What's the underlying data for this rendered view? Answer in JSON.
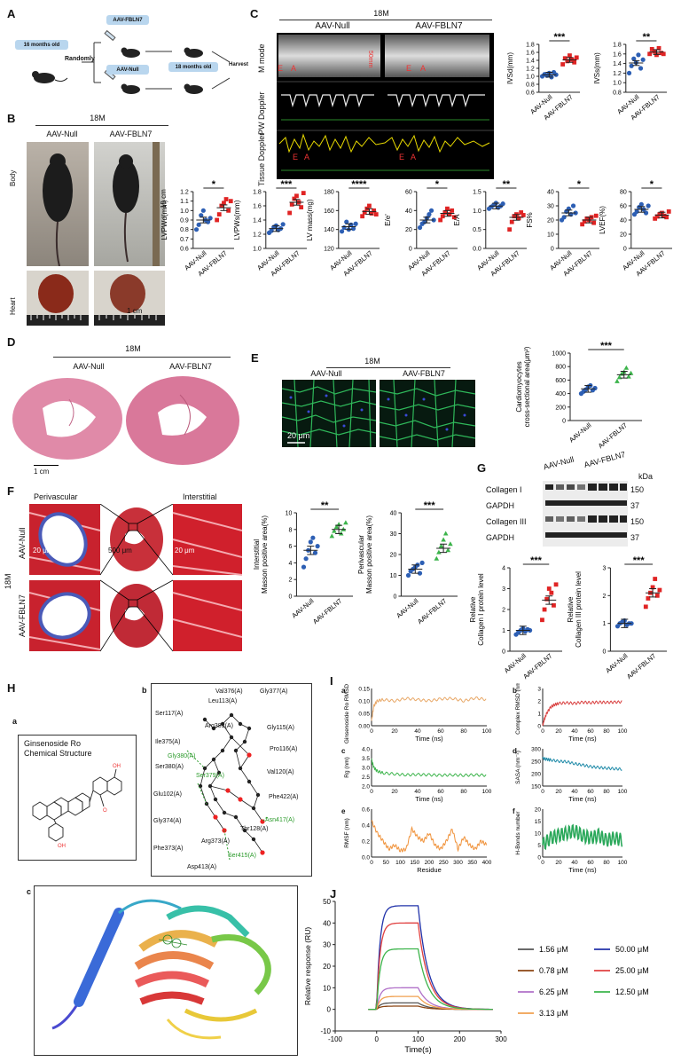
{
  "panel_a": {
    "label": "A",
    "start": "16 months old",
    "randomly": "Randomly",
    "group1": "AAV-FBLN7",
    "group2": "AAV-Null",
    "later": "18 months old",
    "harvest": "Harvest"
  },
  "panel_b": {
    "label": "B",
    "age": "18M",
    "group1": "AAV-Null",
    "group2": "AAV-FBLN7",
    "row_body": "Body",
    "row_heart": "Heart",
    "scale_body": "15 cm",
    "scale_heart": "1 cm"
  },
  "panel_c": {
    "label": "C",
    "age": "18M",
    "group1": "AAV-Null",
    "group2": "AAV-FBLN7",
    "row1": "M mode",
    "row2": "PW Doppler",
    "row3": "Tissue Doppler",
    "e_mark": "E",
    "a_mark": "A"
  },
  "panel_d": {
    "label": "D",
    "age": "18M",
    "group1": "AAV-Null",
    "group2": "AAV-FBLN7",
    "scale": "1 cm"
  },
  "panel_e": {
    "label": "E",
    "age": "18M",
    "group1": "AAV-Null",
    "group2": "AAV-FBLN7",
    "scale": "20 μm"
  },
  "panel_f": {
    "label": "F",
    "col1": "Perivascular",
    "col3": "Interstitial",
    "age": "18M",
    "row1": "AAV-Null",
    "row2": "AAV-FBLN7",
    "scale1": "20 μm",
    "scale2": "500 μm",
    "scale3": "20 μm"
  },
  "panel_g": {
    "label": "G",
    "group1": "AAV-Null",
    "group2": "AAV-FBLN7",
    "kda": "kDa",
    "bands": [
      {
        "name": "Collagen I",
        "kda": "150"
      },
      {
        "name": "GAPDH",
        "kda": "37"
      },
      {
        "name": "Collagen III",
        "kda": "150"
      },
      {
        "name": "GAPDH",
        "kda": "37"
      }
    ]
  },
  "panel_h": {
    "label": "H",
    "sub_a": "a",
    "sub_b": "b",
    "sub_c": "c",
    "chem_title": "Ginsenoside Ro\nChemical Structure",
    "residues": [
      "Val376(A)",
      "Gly377(A)",
      "Leu113(A)",
      "Ser117(A)",
      "Arg381(A)",
      "Gly115(A)",
      "Ile375(A)",
      "Pro116(A)",
      "Gly380(A)",
      "Ser380(A)",
      "Ser379(A)",
      "Val120(A)",
      "Glu102(A)",
      "Phe422(A)",
      "Gly374(A)",
      "Arg373(A)",
      "Thr128(A)",
      "Asn417(A)",
      "Phe373(A)",
      "Ser415(A)",
      "Asp413(A)"
    ]
  },
  "panel_i": {
    "label": "I",
    "subs": [
      "a",
      "b",
      "c",
      "d",
      "e",
      "f"
    ]
  },
  "panel_j": {
    "label": "J"
  },
  "chart_data": [
    {
      "id": "IVSd",
      "type": "scatter",
      "ylabel": "IVSd(mm)",
      "ylim": [
        0.6,
        1.8
      ],
      "yticks": [
        "0.6",
        "0.8",
        "1.0",
        "1.2",
        "1.4",
        "1.6",
        "1.8"
      ],
      "categories": [
        "AAV-Null",
        "AAV-FBLN7"
      ],
      "means": [
        1.04,
        1.41
      ],
      "sig": "***",
      "points": [
        [
          1.0,
          1.05,
          1.02,
          1.08,
          0.98,
          1.1,
          1.04
        ],
        [
          1.3,
          1.45,
          1.38,
          1.52,
          1.42,
          1.35,
          1.47
        ]
      ]
    },
    {
      "id": "IVSs",
      "type": "scatter",
      "ylabel": "IVSs(mm)",
      "ylim": [
        0.8,
        1.8
      ],
      "yticks": [
        "0.8",
        "1.0",
        "1.2",
        "1.4",
        "1.6",
        "1.8"
      ],
      "categories": [
        "AAV-Null",
        "AAV-FBLN7"
      ],
      "means": [
        1.41,
        1.64
      ],
      "sig": "**",
      "points": [
        [
          1.2,
          1.35,
          1.5,
          1.42,
          1.58,
          1.3,
          1.48
        ],
        [
          1.6,
          1.7,
          1.65,
          1.58,
          1.72,
          1.62,
          1.6
        ]
      ]
    },
    {
      "id": "LVPWd",
      "type": "scatter",
      "ylabel": "LVPWd(mm)",
      "ylim": [
        0.6,
        1.2
      ],
      "yticks": [
        "0.6",
        "0.7",
        "0.8",
        "0.9",
        "1.0",
        "1.1",
        "1.2"
      ],
      "categories": [
        "AAV-Null",
        "AAV-FBLN7"
      ],
      "means": [
        0.9,
        1.03
      ],
      "sig": "*",
      "points": [
        [
          0.8,
          0.85,
          0.95,
          1.0,
          0.9,
          0.88,
          0.92
        ],
        [
          0.9,
          0.96,
          1.05,
          1.08,
          1.12,
          1.0,
          1.1
        ]
      ]
    },
    {
      "id": "LVPWs",
      "type": "scatter",
      "ylabel": "LVPWs(mm)",
      "ylim": [
        1.0,
        1.8
      ],
      "yticks": [
        "1.0",
        "1.2",
        "1.4",
        "1.6",
        "1.8"
      ],
      "categories": [
        "AAV-Null",
        "AAV-FBLN7"
      ],
      "means": [
        1.28,
        1.65
      ],
      "sig": "***",
      "points": [
        [
          1.22,
          1.25,
          1.3,
          1.32,
          1.26,
          1.28,
          1.34
        ],
        [
          1.5,
          1.62,
          1.7,
          1.74,
          1.65,
          1.58,
          1.78
        ]
      ]
    },
    {
      "id": "LVmass",
      "type": "scatter",
      "ylabel": "LV mass(mg)",
      "ylim": [
        120,
        180
      ],
      "yticks": [
        "120",
        "140",
        "160",
        "180"
      ],
      "categories": [
        "AAV-Null",
        "AAV-FBLN7"
      ],
      "means": [
        143,
        159
      ],
      "sig": "****",
      "points": [
        [
          138,
          142,
          148,
          140,
          145,
          141,
          146
        ],
        [
          154,
          158,
          162,
          165,
          157,
          160,
          156
        ]
      ]
    },
    {
      "id": "Ee",
      "type": "scatter",
      "ylabel": "E/e'",
      "ylim": [
        0,
        60
      ],
      "yticks": [
        "0",
        "20",
        "40",
        "60"
      ],
      "categories": [
        "AAV-Null",
        "AAV-FBLN7"
      ],
      "means": [
        30,
        37
      ],
      "sig": "*",
      "points": [
        [
          22,
          26,
          28,
          32,
          36,
          40,
          30
        ],
        [
          30,
          34,
          38,
          42,
          36,
          40,
          33
        ]
      ]
    },
    {
      "id": "EA",
      "type": "scatter",
      "ylabel": "E/A",
      "ylim": [
        0.0,
        1.5
      ],
      "yticks": [
        "0.0",
        "0.5",
        "1.0",
        "1.5"
      ],
      "categories": [
        "AAV-Null",
        "AAV-FBLN7"
      ],
      "means": [
        1.12,
        0.82
      ],
      "sig": "**",
      "points": [
        [
          1.05,
          1.1,
          1.15,
          1.2,
          1.08,
          1.12,
          1.18
        ],
        [
          0.5,
          0.7,
          0.85,
          0.9,
          0.8,
          0.95,
          0.88
        ]
      ]
    },
    {
      "id": "FS",
      "type": "scatter",
      "ylabel": "FS%",
      "ylim": [
        0,
        40
      ],
      "yticks": [
        "0",
        "10",
        "20",
        "30",
        "40"
      ],
      "categories": [
        "AAV-Null",
        "AAV-FBLN7"
      ],
      "means": [
        25,
        20
      ],
      "sig": "*",
      "points": [
        [
          20,
          22,
          26,
          28,
          24,
          30,
          25
        ],
        [
          17,
          19,
          21,
          20,
          22,
          18,
          23
        ]
      ]
    },
    {
      "id": "LVEF",
      "type": "scatter",
      "ylabel": "LVEF(%)",
      "ylim": [
        0,
        80
      ],
      "yticks": [
        "0",
        "20",
        "40",
        "60",
        "80"
      ],
      "categories": [
        "AAV-Null",
        "AAV-FBLN7"
      ],
      "means": [
        55,
        47
      ],
      "sig": "*",
      "points": [
        [
          48,
          52,
          58,
          62,
          55,
          50,
          60
        ],
        [
          42,
          45,
          48,
          50,
          46,
          44,
          52
        ]
      ]
    },
    {
      "id": "CSA",
      "type": "scatter",
      "ylabel": "Cardiomyocytes\ncross-sectional area(μm²)",
      "ylim": [
        0,
        1000
      ],
      "yticks": [
        "0",
        "200",
        "400",
        "600",
        "800",
        "1000"
      ],
      "categories": [
        "AAV-Null",
        "AAV-FBLN7"
      ],
      "means": [
        470,
        680
      ],
      "sig": "***",
      "points": [
        [
          400,
          430,
          460,
          500,
          520,
          450,
          480
        ],
        [
          580,
          640,
          690,
          720,
          780,
          650,
          700
        ]
      ]
    },
    {
      "id": "Interstitial",
      "type": "scatter",
      "ylabel": "Interstitial\nMasson positive area(%)",
      "ylim": [
        0,
        10
      ],
      "yticks": [
        "0",
        "2",
        "4",
        "6",
        "8",
        "10"
      ],
      "categories": [
        "AAV-Null",
        "AAV-FBLN7"
      ],
      "means": [
        5.5,
        8
      ],
      "sig": "**",
      "points": [
        [
          3.5,
          4.5,
          5.5,
          6.5,
          7.0,
          5.2,
          6.0
        ],
        [
          7.2,
          7.8,
          8.3,
          8.6,
          7.5,
          8.0,
          8.8
        ]
      ]
    },
    {
      "id": "Perivascular",
      "type": "scatter",
      "ylabel": "Perivascular\nMasson positive area(%)",
      "ylim": [
        0,
        40
      ],
      "yticks": [
        "0",
        "10",
        "20",
        "30",
        "40"
      ],
      "categories": [
        "AAV-Null",
        "AAV-FBLN7"
      ],
      "means": [
        13,
        23
      ],
      "sig": "***",
      "points": [
        [
          10,
          12,
          13,
          14,
          15,
          11,
          16
        ],
        [
          18,
          21,
          24,
          27,
          30,
          22,
          25
        ]
      ]
    },
    {
      "id": "Col1",
      "type": "scatter",
      "ylabel": "Relative\nCollagen I protein level",
      "ylim": [
        0,
        4
      ],
      "yticks": [
        "0",
        "1",
        "2",
        "3",
        "4"
      ],
      "categories": [
        "AAV-Null",
        "AAV-FBLN7"
      ],
      "means": [
        1.0,
        2.45
      ],
      "sig": "***",
      "points": [
        [
          0.8,
          0.9,
          1.0,
          1.1,
          0.95,
          1.05,
          1.0
        ],
        [
          1.5,
          2.0,
          2.5,
          3.0,
          2.8,
          2.2,
          3.2
        ]
      ]
    },
    {
      "id": "Col3",
      "type": "scatter",
      "ylabel": "Relative\nCollagen III protein level",
      "ylim": [
        0,
        3
      ],
      "yticks": [
        "0",
        "1",
        "2",
        "3"
      ],
      "categories": [
        "AAV-Null",
        "AAV-FBLN7"
      ],
      "means": [
        1.0,
        2.1
      ],
      "sig": "***",
      "points": [
        [
          0.9,
          1.0,
          1.05,
          1.1,
          0.95,
          1.0,
          1.0
        ],
        [
          1.6,
          1.9,
          2.1,
          2.3,
          2.6,
          2.0,
          2.2
        ]
      ]
    },
    {
      "id": "Ia",
      "type": "line",
      "ylabel": "Ginsenoside Ro RMSD (nm)",
      "xlabel": "Time (ns)",
      "xlim": [
        0,
        100
      ],
      "ylim": [
        0.0,
        0.15
      ],
      "yticks": [
        "0.00",
        "0.05",
        "0.10",
        "0.15"
      ],
      "xticks": [
        "0",
        "20",
        "40",
        "60",
        "80",
        "100"
      ],
      "color": "#e8a868",
      "x": [
        0,
        2,
        5,
        10,
        20,
        30,
        40,
        50,
        60,
        70,
        80,
        90,
        100
      ],
      "y": [
        0.02,
        0.08,
        0.1,
        0.105,
        0.1,
        0.11,
        0.105,
        0.1,
        0.108,
        0.11,
        0.1,
        0.112,
        0.105
      ]
    },
    {
      "id": "Ib",
      "type": "line",
      "ylabel": "Complex RMSD (nm)",
      "xlabel": "Time (ns)",
      "xlim": [
        0,
        100
      ],
      "ylim": [
        0,
        3
      ],
      "yticks": [
        "0",
        "1",
        "2",
        "3"
      ],
      "xticks": [
        "0",
        "20",
        "40",
        "60",
        "80",
        "100"
      ],
      "color": "#d94040",
      "x": [
        0,
        2,
        5,
        10,
        15,
        20,
        30,
        40,
        50,
        60,
        70,
        80,
        90,
        100
      ],
      "y": [
        0.0,
        0.5,
        1.0,
        1.5,
        1.7,
        1.8,
        1.85,
        1.8,
        1.9,
        1.85,
        1.9,
        1.88,
        1.9,
        1.92
      ]
    },
    {
      "id": "Ic",
      "type": "line",
      "ylabel": "Rg (nm)",
      "xlabel": "Time (ns)",
      "xlim": [
        0,
        100
      ],
      "ylim": [
        2.0,
        4.0
      ],
      "yticks": [
        "2.0",
        "2.5",
        "3.0",
        "3.5",
        "4.0"
      ],
      "xticks": [
        "0",
        "20",
        "40",
        "60",
        "80",
        "100"
      ],
      "color": "#3cb44b",
      "x": [
        0,
        2,
        5,
        10,
        20,
        30,
        40,
        50,
        60,
        70,
        80,
        90,
        100
      ],
      "y": [
        3.4,
        3.0,
        2.8,
        2.7,
        2.65,
        2.6,
        2.62,
        2.6,
        2.58,
        2.6,
        2.58,
        2.6,
        2.58
      ]
    },
    {
      "id": "Id",
      "type": "line",
      "ylabel": "SASA (nm⁻²)",
      "xlabel": "Time (ns)",
      "xlim": [
        0,
        100
      ],
      "ylim": [
        150,
        300
      ],
      "yticks": [
        "150",
        "200",
        "250",
        "300"
      ],
      "xticks": [
        "0",
        "20",
        "40",
        "60",
        "80",
        "100"
      ],
      "color": "#1f8aa8",
      "x": [
        0,
        5,
        10,
        20,
        30,
        40,
        50,
        60,
        70,
        80,
        90,
        100
      ],
      "y": [
        262,
        258,
        255,
        250,
        248,
        240,
        235,
        228,
        225,
        222,
        220,
        218
      ]
    },
    {
      "id": "Ie",
      "type": "line",
      "ylabel": "RMSF (nm)",
      "xlabel": "Residue",
      "xlim": [
        0,
        400
      ],
      "ylim": [
        0.0,
        0.6
      ],
      "yticks": [
        "0.0",
        "0.2",
        "0.4",
        "0.6"
      ],
      "xticks": [
        "0",
        "50",
        "100",
        "150",
        "200",
        "250",
        "300",
        "350",
        "400"
      ],
      "color": "#f0923a",
      "x": [
        0,
        20,
        40,
        60,
        80,
        100,
        120,
        140,
        160,
        180,
        200,
        220,
        240,
        260,
        280,
        300,
        320,
        340,
        360,
        380,
        400
      ],
      "y": [
        0.45,
        0.3,
        0.2,
        0.1,
        0.15,
        0.08,
        0.1,
        0.35,
        0.25,
        0.2,
        0.3,
        0.15,
        0.1,
        0.2,
        0.35,
        0.1,
        0.25,
        0.15,
        0.1,
        0.2,
        0.15
      ]
    },
    {
      "id": "If",
      "type": "line",
      "ylabel": "H-Bonds number",
      "xlabel": "Time (ns)",
      "xlim": [
        0,
        100
      ],
      "ylim": [
        0,
        20
      ],
      "yticks": [
        "0",
        "5",
        "10",
        "15",
        "20"
      ],
      "xticks": [
        "0",
        "20",
        "40",
        "60",
        "80",
        "100"
      ],
      "color": "#2aa85a",
      "x": [
        0,
        10,
        20,
        30,
        40,
        50,
        60,
        70,
        80,
        90,
        100
      ],
      "y": [
        5,
        8,
        9,
        10,
        11,
        9,
        8,
        9,
        7,
        8,
        7
      ]
    },
    {
      "id": "J",
      "type": "line",
      "ylabel": "Relative response (RU)",
      "xlabel": "Time(s)",
      "xlim": [
        -100,
        300
      ],
      "ylim": [
        -10,
        50
      ],
      "xticks": [
        "-100",
        "0",
        "100",
        "200",
        "300"
      ],
      "yticks": [
        "-10",
        "0",
        "10",
        "20",
        "30",
        "40",
        "50"
      ],
      "series": [
        {
          "name": "1.56 μM",
          "color": "#555555",
          "plateau": 3
        },
        {
          "name": "0.78 μM",
          "color": "#8b4513",
          "plateau": 1.5
        },
        {
          "name": "6.25 μM",
          "color": "#b070c8",
          "plateau": 10
        },
        {
          "name": "3.13 μM",
          "color": "#f0a050",
          "plateau": 6
        },
        {
          "name": "50.00 μM",
          "color": "#2233aa",
          "plateau": 48
        },
        {
          "name": "25.00 μM",
          "color": "#e04040",
          "plateau": 40
        },
        {
          "name": "12.50 μM",
          "color": "#3cb44b",
          "plateau": 28
        }
      ]
    }
  ]
}
